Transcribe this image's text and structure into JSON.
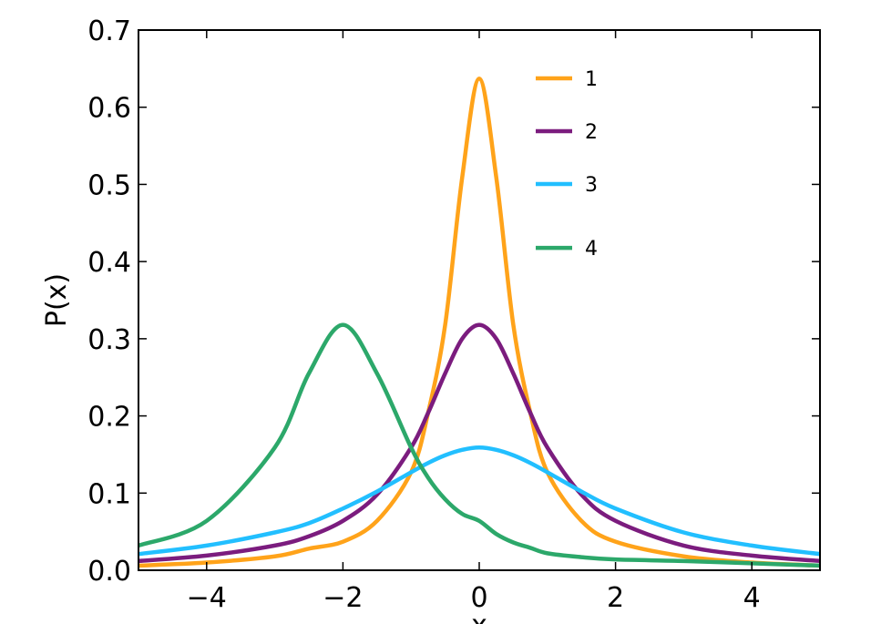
{
  "chart_data": {
    "type": "line",
    "title": "",
    "xlabel": "x",
    "ylabel": "P(x)",
    "xlim": [
      -5,
      5
    ],
    "ylim": [
      0,
      0.7
    ],
    "x_ticks": [
      -4,
      -2,
      0,
      2,
      4
    ],
    "x_tick_labels": [
      "−4",
      "−2",
      "0",
      "2",
      "4"
    ],
    "y_ticks": [
      0.0,
      0.1,
      0.2,
      0.3,
      0.4,
      0.5,
      0.6,
      0.7
    ],
    "y_tick_labels": [
      "0.0",
      "0.1",
      "0.2",
      "0.3",
      "0.4",
      "0.5",
      "0.6",
      "0.7"
    ],
    "grid": false,
    "legend_position": "top-right",
    "x": [
      -5.0,
      -4.0,
      -3.0,
      -2.5,
      -2.0,
      -1.5,
      -1.0,
      -0.75,
      -0.5,
      -0.25,
      0.0,
      0.25,
      0.5,
      0.75,
      1.0,
      1.5,
      2.0,
      3.0,
      4.0,
      5.0
    ],
    "series": [
      {
        "name": "1",
        "color": "#ffa31a",
        "values": [
          0.006,
          0.01,
          0.018,
          0.028,
          0.037,
          0.064,
          0.127,
          0.204,
          0.318,
          0.509,
          0.637,
          0.509,
          0.318,
          0.204,
          0.127,
          0.064,
          0.037,
          0.018,
          0.01,
          0.006
        ]
      },
      {
        "name": "2",
        "color": "#7b1c7e",
        "values": [
          0.012,
          0.019,
          0.032,
          0.044,
          0.064,
          0.098,
          0.159,
          0.204,
          0.255,
          0.3,
          0.318,
          0.3,
          0.255,
          0.204,
          0.159,
          0.098,
          0.064,
          0.032,
          0.019,
          0.012
        ]
      },
      {
        "name": "3",
        "color": "#22bfff",
        "values": [
          0.021,
          0.032,
          0.049,
          0.061,
          0.08,
          0.102,
          0.127,
          0.139,
          0.149,
          0.156,
          0.159,
          0.156,
          0.149,
          0.139,
          0.127,
          0.102,
          0.08,
          0.049,
          0.032,
          0.021
        ]
      },
      {
        "name": "4",
        "color": "#2ca86a",
        "values": [
          0.032,
          0.064,
          0.159,
          0.255,
          0.318,
          0.255,
          0.159,
          0.12,
          0.092,
          0.073,
          0.064,
          0.047,
          0.036,
          0.029,
          0.022,
          0.017,
          0.014,
          0.012,
          0.009,
          0.006
        ]
      }
    ]
  }
}
